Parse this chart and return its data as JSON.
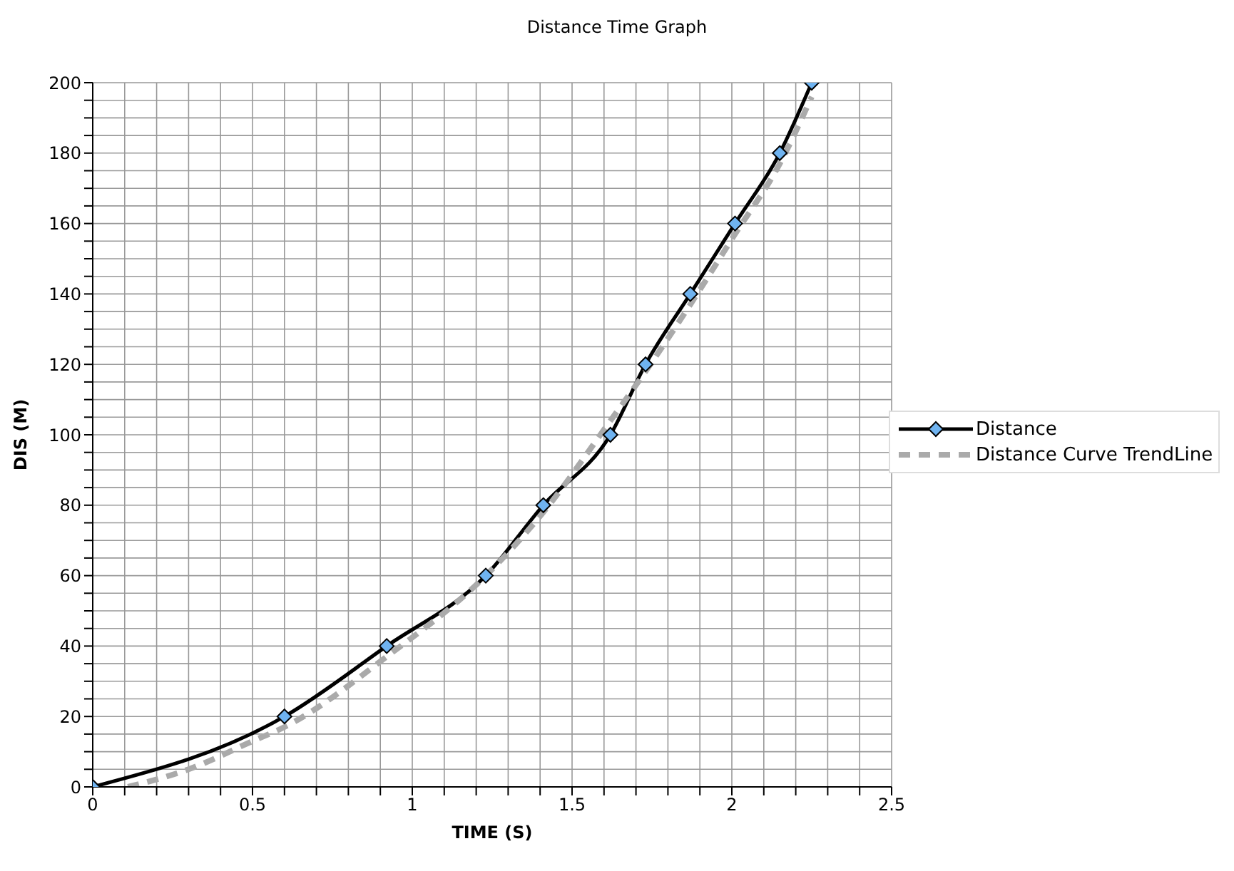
{
  "chart_data": {
    "type": "line",
    "title": "Distance Time Graph",
    "xlabel": "TIME (S)",
    "ylabel": "DIS (M)",
    "xlim": [
      0,
      2.5
    ],
    "xticks": [
      0,
      {
        "value": 0.1,
        "label": null
      },
      {
        "value": 0.2,
        "label": null
      },
      {
        "value": 0.3,
        "label": null
      },
      {
        "value": 0.4,
        "label": null
      },
      0.5,
      {
        "value": 0.6,
        "label": null
      },
      {
        "value": 0.7,
        "label": null
      },
      {
        "value": 0.8,
        "label": null
      },
      {
        "value": 0.9,
        "label": null
      },
      1,
      {
        "value": 1.1,
        "label": null
      },
      {
        "value": 1.2,
        "label": null
      },
      {
        "value": 1.3,
        "label": null
      },
      {
        "value": 1.4,
        "label": null
      },
      1.5,
      {
        "value": 1.6,
        "label": null
      },
      {
        "value": 1.7,
        "label": null
      },
      {
        "value": 1.8,
        "label": null
      },
      {
        "value": 1.9,
        "label": null
      },
      2,
      {
        "value": 2.1,
        "label": null
      },
      {
        "value": 2.2,
        "label": null
      },
      {
        "value": 2.3,
        "label": null
      },
      {
        "value": 2.4,
        "label": null
      },
      2.5
    ],
    "ylim": [
      0,
      200
    ],
    "yticks": [
      0,
      {
        "value": 5,
        "label": null
      },
      {
        "value": 10,
        "label": null
      },
      {
        "value": 15,
        "label": null
      },
      20,
      {
        "value": 25,
        "label": null
      },
      {
        "value": 30,
        "label": null
      },
      {
        "value": 35,
        "label": null
      },
      40,
      {
        "value": 45,
        "label": null
      },
      {
        "value": 50,
        "label": null
      },
      {
        "value": 55,
        "label": null
      },
      60,
      {
        "value": 65,
        "label": null
      },
      {
        "value": 70,
        "label": null
      },
      {
        "value": 75,
        "label": null
      },
      80,
      {
        "value": 85,
        "label": null
      },
      {
        "value": 90,
        "label": null
      },
      {
        "value": 95,
        "label": null
      },
      100,
      {
        "value": 105,
        "label": null
      },
      {
        "value": 110,
        "label": null
      },
      {
        "value": 115,
        "label": null
      },
      120,
      {
        "value": 125,
        "label": null
      },
      {
        "value": 130,
        "label": null
      },
      {
        "value": 135,
        "label": null
      },
      140,
      {
        "value": 145,
        "label": null
      },
      {
        "value": 150,
        "label": null
      },
      {
        "value": 155,
        "label": null
      },
      160,
      {
        "value": 165,
        "label": null
      },
      {
        "value": 170,
        "label": null
      },
      {
        "value": 175,
        "label": null
      },
      180,
      {
        "value": 185,
        "label": null
      },
      {
        "value": 190,
        "label": null
      },
      {
        "value": 195,
        "label": null
      },
      200
    ],
    "grid": true,
    "legend": "right",
    "series": [
      {
        "name": "Distance",
        "color": "#000000",
        "marker": "diamond",
        "line_style": "solid",
        "x": [
          0,
          0.6,
          0.92,
          1.23,
          1.41,
          1.62,
          1.73,
          1.87,
          2.01,
          2.15,
          2.25
        ],
        "values": [
          0,
          20,
          40,
          60,
          80,
          100,
          120,
          140,
          160,
          180,
          200
        ]
      },
      {
        "name": "Distance Curve TrendLine",
        "color": "#aaaaaa",
        "marker": "none",
        "line_style": "dashed",
        "x": [
          0.11,
          0.3,
          0.5,
          0.6,
          0.92,
          1.23,
          1.41,
          1.62,
          1.73,
          1.87,
          2.01,
          2.15,
          2.25
        ],
        "values": [
          0,
          5,
          13,
          17,
          37,
          60,
          78,
          104,
          118,
          137,
          157,
          177,
          196
        ]
      }
    ]
  }
}
